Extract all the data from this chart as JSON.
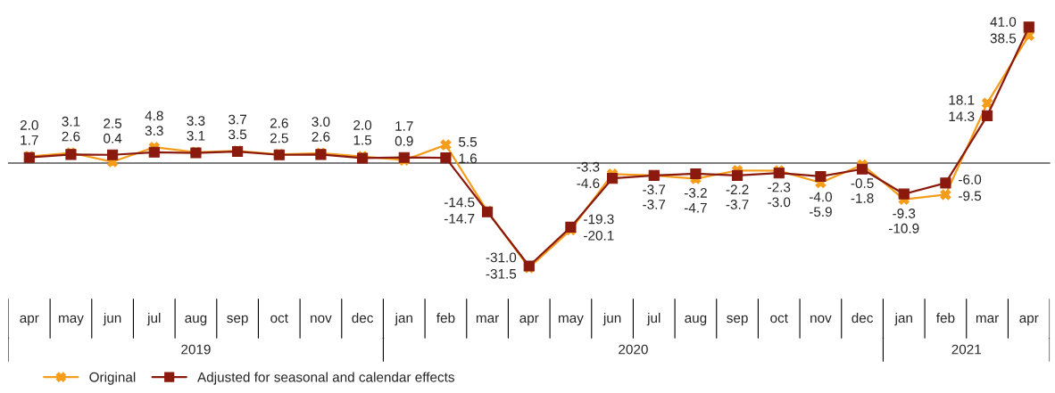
{
  "chart_data": {
    "type": "line",
    "categories": [
      "apr",
      "may",
      "jun",
      "jul",
      "aug",
      "sep",
      "oct",
      "nov",
      "dec",
      "jan",
      "feb",
      "mar",
      "apr",
      "may",
      "jun",
      "jul",
      "aug",
      "sep",
      "oct",
      "nov",
      "dec",
      "jan",
      "feb",
      "mar",
      "apr"
    ],
    "series": [
      {
        "name": "Original",
        "color": "#f59d1a",
        "marker": "cross",
        "values": [
          2.0,
          3.1,
          0.4,
          4.8,
          3.3,
          3.7,
          2.6,
          3.0,
          2.0,
          0.9,
          5.5,
          -14.5,
          -31.5,
          -20.1,
          -3.3,
          -3.7,
          -4.7,
          -2.2,
          -2.3,
          -5.9,
          -0.5,
          -10.9,
          -9.5,
          18.1,
          38.5
        ],
        "value_labels": [
          "2.0",
          "3.1",
          "0.4",
          "4.8",
          "3.3",
          "3.7",
          "2.6",
          "3.0",
          "2.0",
          "0.9",
          "5.5",
          "-14.5",
          "-31.5",
          "-20.1",
          "-3.3",
          "-3.7",
          "-4.7",
          "-2.2",
          "-2.3",
          "-5.9",
          "-0.5",
          "-10.9",
          "-9.5",
          "18.1",
          "38.5"
        ]
      },
      {
        "name": "Adjusted for seasonal and calendar effects",
        "color": "#8b1a0e",
        "marker": "square",
        "values": [
          1.7,
          2.6,
          2.5,
          3.3,
          3.1,
          3.5,
          2.5,
          2.6,
          1.5,
          1.7,
          1.6,
          -14.7,
          -31.0,
          -19.3,
          -4.6,
          -3.7,
          -3.2,
          -3.7,
          -3.0,
          -4.0,
          -1.8,
          -9.3,
          -6.0,
          14.3,
          41.0
        ],
        "value_labels": [
          "1.7",
          "2.6",
          "2.5",
          "3.3",
          "3.1",
          "3.5",
          "2.5",
          "2.6",
          "1.5",
          "1.7",
          "1.6",
          "-14.7",
          "-31.0",
          "-19.3",
          "-4.6",
          "-3.7",
          "-3.2",
          "-3.7",
          "-3.0",
          "-4.0",
          "-1.8",
          "-9.3",
          "-6.0",
          "14.3",
          "41.0"
        ]
      }
    ],
    "legend": "bottom left",
    "annotations": [
      "2019",
      "2020",
      "2021"
    ]
  }
}
